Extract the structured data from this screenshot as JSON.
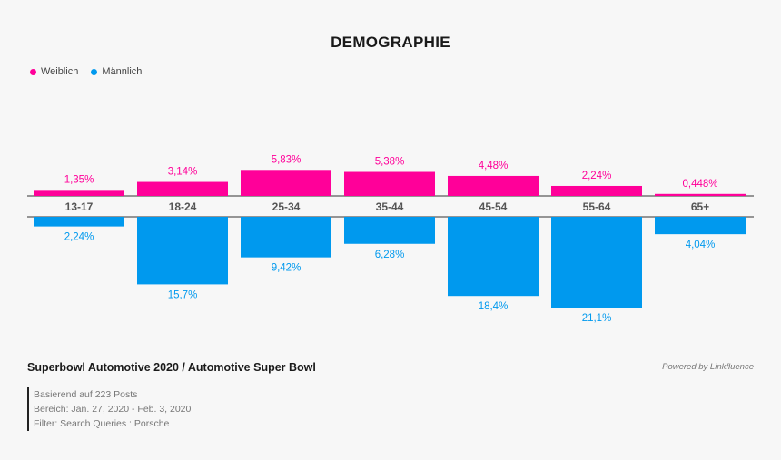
{
  "title": "DEMOGRAPHIE",
  "legend": {
    "female_label": "Weiblich",
    "male_label": "Männlich"
  },
  "colors": {
    "female": "#ff0099",
    "male": "#0099ee",
    "axis_text": "#555555",
    "baseline": "#333333"
  },
  "chart_data": {
    "type": "bar",
    "title": "DEMOGRAPHIE",
    "categories": [
      "13-17",
      "18-24",
      "25-34",
      "35-44",
      "45-54",
      "55-64",
      "65+"
    ],
    "series": [
      {
        "name": "Weiblich",
        "values": [
          1.35,
          3.14,
          5.83,
          5.38,
          4.48,
          2.24,
          0.448
        ],
        "labels": [
          "1,35%",
          "3,14%",
          "5,83%",
          "5,38%",
          "4,48%",
          "2,24%",
          "0,448%"
        ],
        "direction": "up"
      },
      {
        "name": "Männlich",
        "values": [
          2.24,
          15.7,
          9.42,
          6.28,
          18.4,
          21.1,
          4.04
        ],
        "labels": [
          "2,24%",
          "15,7%",
          "9,42%",
          "6,28%",
          "18,4%",
          "21,1%",
          "4,04%"
        ],
        "direction": "down"
      }
    ],
    "xlabel": "",
    "ylabel": "",
    "legend": "top-left",
    "grid": false
  },
  "footer": {
    "subtitle": "Superbowl Automotive 2020 / Automotive Super Bowl",
    "powered_by": "Powered by Linkfluence",
    "posts": "Basierend auf 223 Posts",
    "range": "Bereich: Jan. 27, 2020 - Feb. 3, 2020",
    "filter": "Filter: Search Queries : Porsche"
  }
}
